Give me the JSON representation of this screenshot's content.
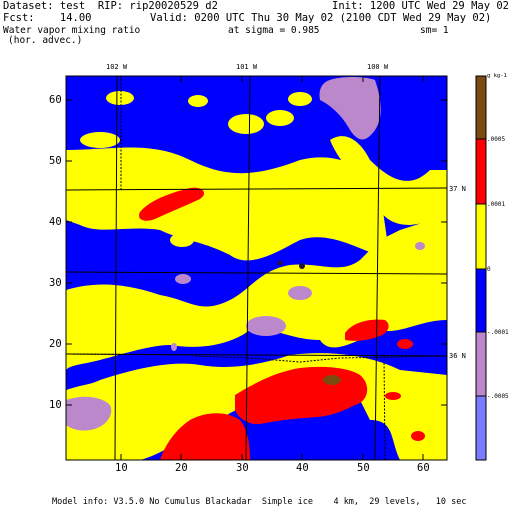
{
  "header": {
    "dataset": "Dataset: test  RIP: rip20020529 d2",
    "init": "Init: 1200 UTC Wed 29 May 02",
    "fcst": "Fcst:    14.00",
    "valid": "Valid: 0200 UTC Thu 30 May 02 (2100 CDT Wed 29 May 02)",
    "field": "Water vapor mixing ratio",
    "sigma": "at sigma = 0.985",
    "sm": "sm= 1",
    "advec": "(hor. advec.)"
  },
  "footer": {
    "model_info": "Model info: V3.5.0 No Cumulus Blackadar  Simple ice    4 km,  29 levels,   10 sec"
  },
  "map": {
    "longitude_labels": [
      "102 W",
      "101 W",
      "100 W"
    ],
    "latitude_labels": [
      "37 N",
      "36 N"
    ],
    "x_ticks": [
      "10",
      "20",
      "30",
      "40",
      "50",
      "60"
    ],
    "y_ticks": [
      "10",
      "20",
      "30",
      "40",
      "50",
      "60"
    ],
    "x_range": [
      1,
      64
    ],
    "y_range": [
      1,
      64
    ]
  },
  "legend": {
    "unit_label": "g kg-1",
    "levels": [
      ".0005",
      ".0001",
      "0",
      "-.0001",
      "-.0005"
    ],
    "colors": {
      "brown": "#7a4a10",
      "red": "#ff0000",
      "yellow": "#ffff00",
      "blue": "#0000ff",
      "purple": "#bb88cc",
      "light_blue": "#7c7cff"
    }
  }
}
